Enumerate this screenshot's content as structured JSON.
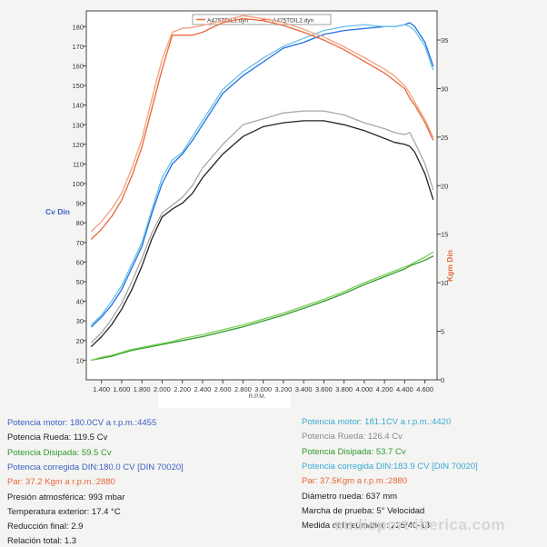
{
  "chart_data": {
    "type": "line",
    "legend": [
      "A425TDIL1.dyn",
      "A425TDIL2.dyn"
    ],
    "legend_position": "top-center",
    "xlabel": "R.P.M.",
    "ylabel_left": "Cv Din",
    "ylabel_right": "Kgm Din",
    "xlim": [
      1250,
      4720
    ],
    "ylim_left": [
      0,
      188
    ],
    "ylim_right": [
      0,
      38
    ],
    "x_ticks": [
      "1.400",
      "1.600",
      "1.800",
      "2.000",
      "2.200",
      "2.400",
      "2.600",
      "2.800",
      "3.000",
      "3.200",
      "3.400",
      "3.600",
      "3.800",
      "4.000",
      "4.200",
      "4.400",
      "4.600"
    ],
    "y_ticks_left": [
      "10",
      "20",
      "30",
      "40",
      "50",
      "60",
      "70",
      "80",
      "90",
      "100",
      "110",
      "120",
      "130",
      "140",
      "150",
      "160",
      "170",
      "180"
    ],
    "y_ticks_right": [
      "0",
      "5",
      "10",
      "15",
      "20",
      "25",
      "30",
      "35"
    ],
    "grid": false,
    "x": [
      1300,
      1400,
      1500,
      1600,
      1700,
      1800,
      1900,
      2000,
      2100,
      2200,
      2300,
      2400,
      2600,
      2800,
      3000,
      3200,
      3400,
      3600,
      3800,
      4000,
      4200,
      4300,
      4400,
      4450,
      4500,
      4600,
      4680
    ],
    "series": [
      {
        "name": "Potencia motor",
        "axis": "left",
        "color": "#1f6fe0",
        "values": [
          27,
          32,
          38,
          46,
          57,
          68,
          85,
          100,
          110,
          115,
          122,
          130,
          146,
          155,
          162,
          169,
          172,
          176,
          178,
          179,
          180,
          180,
          181,
          182,
          180,
          172,
          160
        ]
      },
      {
        "name": "Potencia motor",
        "axis": "left",
        "color": "#6cc1e8",
        "values": [
          28,
          33,
          40,
          48,
          59,
          70,
          87,
          103,
          112,
          116,
          124,
          132,
          148,
          157,
          164,
          170,
          174,
          178,
          180,
          181,
          180,
          180,
          181,
          180,
          178,
          170,
          158
        ]
      },
      {
        "name": "Potencia Rueda",
        "axis": "left",
        "color": "#222222",
        "values": [
          17,
          22,
          28,
          36,
          46,
          58,
          72,
          83,
          87,
          90,
          95,
          103,
          115,
          124,
          129,
          131,
          132,
          132,
          130,
          127,
          123,
          121,
          120,
          119,
          116,
          105,
          92
        ]
      },
      {
        "name": "Potencia Rueda",
        "axis": "left",
        "color": "#a8a8a8",
        "values": [
          19,
          24,
          31,
          39,
          50,
          62,
          75,
          85,
          89,
          93,
          99,
          108,
          120,
          130,
          133,
          136,
          137,
          137,
          135,
          131,
          128,
          126,
          125,
          126,
          121,
          110,
          97
        ]
      },
      {
        "name": "Potencia Disipada",
        "axis": "left",
        "color": "#2e9a2e",
        "values": [
          10,
          11,
          12,
          13.5,
          15,
          16,
          17,
          18,
          19,
          20,
          21,
          22,
          24.5,
          27,
          30,
          33,
          36.5,
          40,
          44,
          48.5,
          52.5,
          54.5,
          56.5,
          58,
          59,
          61,
          63
        ]
      },
      {
        "name": "Potencia Disipada",
        "axis": "left",
        "color": "#7ccd52",
        "values": [
          10,
          11.5,
          12.5,
          14,
          15.5,
          16.5,
          17.5,
          18.5,
          19.5,
          21,
          22,
          23,
          25.5,
          28,
          31,
          34,
          37.5,
          41,
          45,
          49.5,
          53.5,
          55.5,
          57.5,
          58.5,
          60,
          62.5,
          65
        ]
      },
      {
        "name": "Par",
        "axis": "right",
        "color": "#e5683a",
        "values": [
          14.5,
          15.5,
          16.8,
          18.5,
          21,
          24,
          28,
          32,
          35.5,
          35.5,
          35.5,
          35.8,
          36.8,
          37.2,
          37,
          36.5,
          35.8,
          35,
          34,
          32.8,
          31.6,
          30.8,
          30,
          29,
          28.3,
          26.5,
          24.7
        ]
      },
      {
        "name": "Par",
        "axis": "right",
        "color": "#f3a07e",
        "values": [
          15.3,
          16.3,
          17.6,
          19.2,
          21.8,
          24.8,
          29,
          33,
          35.8,
          36.2,
          36.3,
          36.5,
          37,
          37.5,
          37.2,
          36.8,
          36.1,
          35.3,
          34.3,
          33.2,
          32,
          31.3,
          30.3,
          29.5,
          28.6,
          26.8,
          25
        ]
      }
    ]
  },
  "summary": {
    "left": [
      {
        "label": "Potencia motor: 180.0CV a r.p.m.:4455",
        "color": "blue"
      },
      {
        "label": "Potencia Rueda: 119.5 Cv",
        "color": "dark"
      },
      {
        "label": "Potencia Disipada: 59.5 Cv",
        "color": "green"
      },
      {
        "label": " Potencia corregida DIN:180.0 CV  [DIN 70020]",
        "color": "blue"
      },
      {
        "label": "Par: 37.2 Kgm a r.p.m.:2880",
        "color": "orange"
      },
      {
        "label": "Presión atmosférica: 993 mbar",
        "color": "dark"
      },
      {
        "label": "Temperatura exterior: 17.4 °C",
        "color": "dark"
      },
      {
        "label": "Reducción final: 2.9",
        "color": "dark"
      },
      {
        "label": "Relación total: 1.3",
        "color": "dark"
      }
    ],
    "right": [
      {
        "label": "Potencia motor: 181.1CV a r.p.m.:4420",
        "color": "cyan"
      },
      {
        "label": "Potencia Rueda: 126.4 Cv",
        "color": "gray"
      },
      {
        "label": "Potencia Disipada: 53.7 Cv",
        "color": "green"
      },
      {
        "label": "  Potencia corregida DIN:183.9 CV  [DIN 70020]",
        "color": "cyan"
      },
      {
        "label": "Par: 37.5Kgm a r.p.m.:2880",
        "color": "orange"
      },
      {
        "label": "Diámetro rueda: 637 mm",
        "color": "dark"
      },
      {
        "label": "Marcha de prueba: 5° Velocidad",
        "color": "dark"
      },
      {
        "label": "Medida del neumático: 225/40-18",
        "color": "dark"
      }
    ]
  },
  "watermark": "audisport-iberica.com"
}
